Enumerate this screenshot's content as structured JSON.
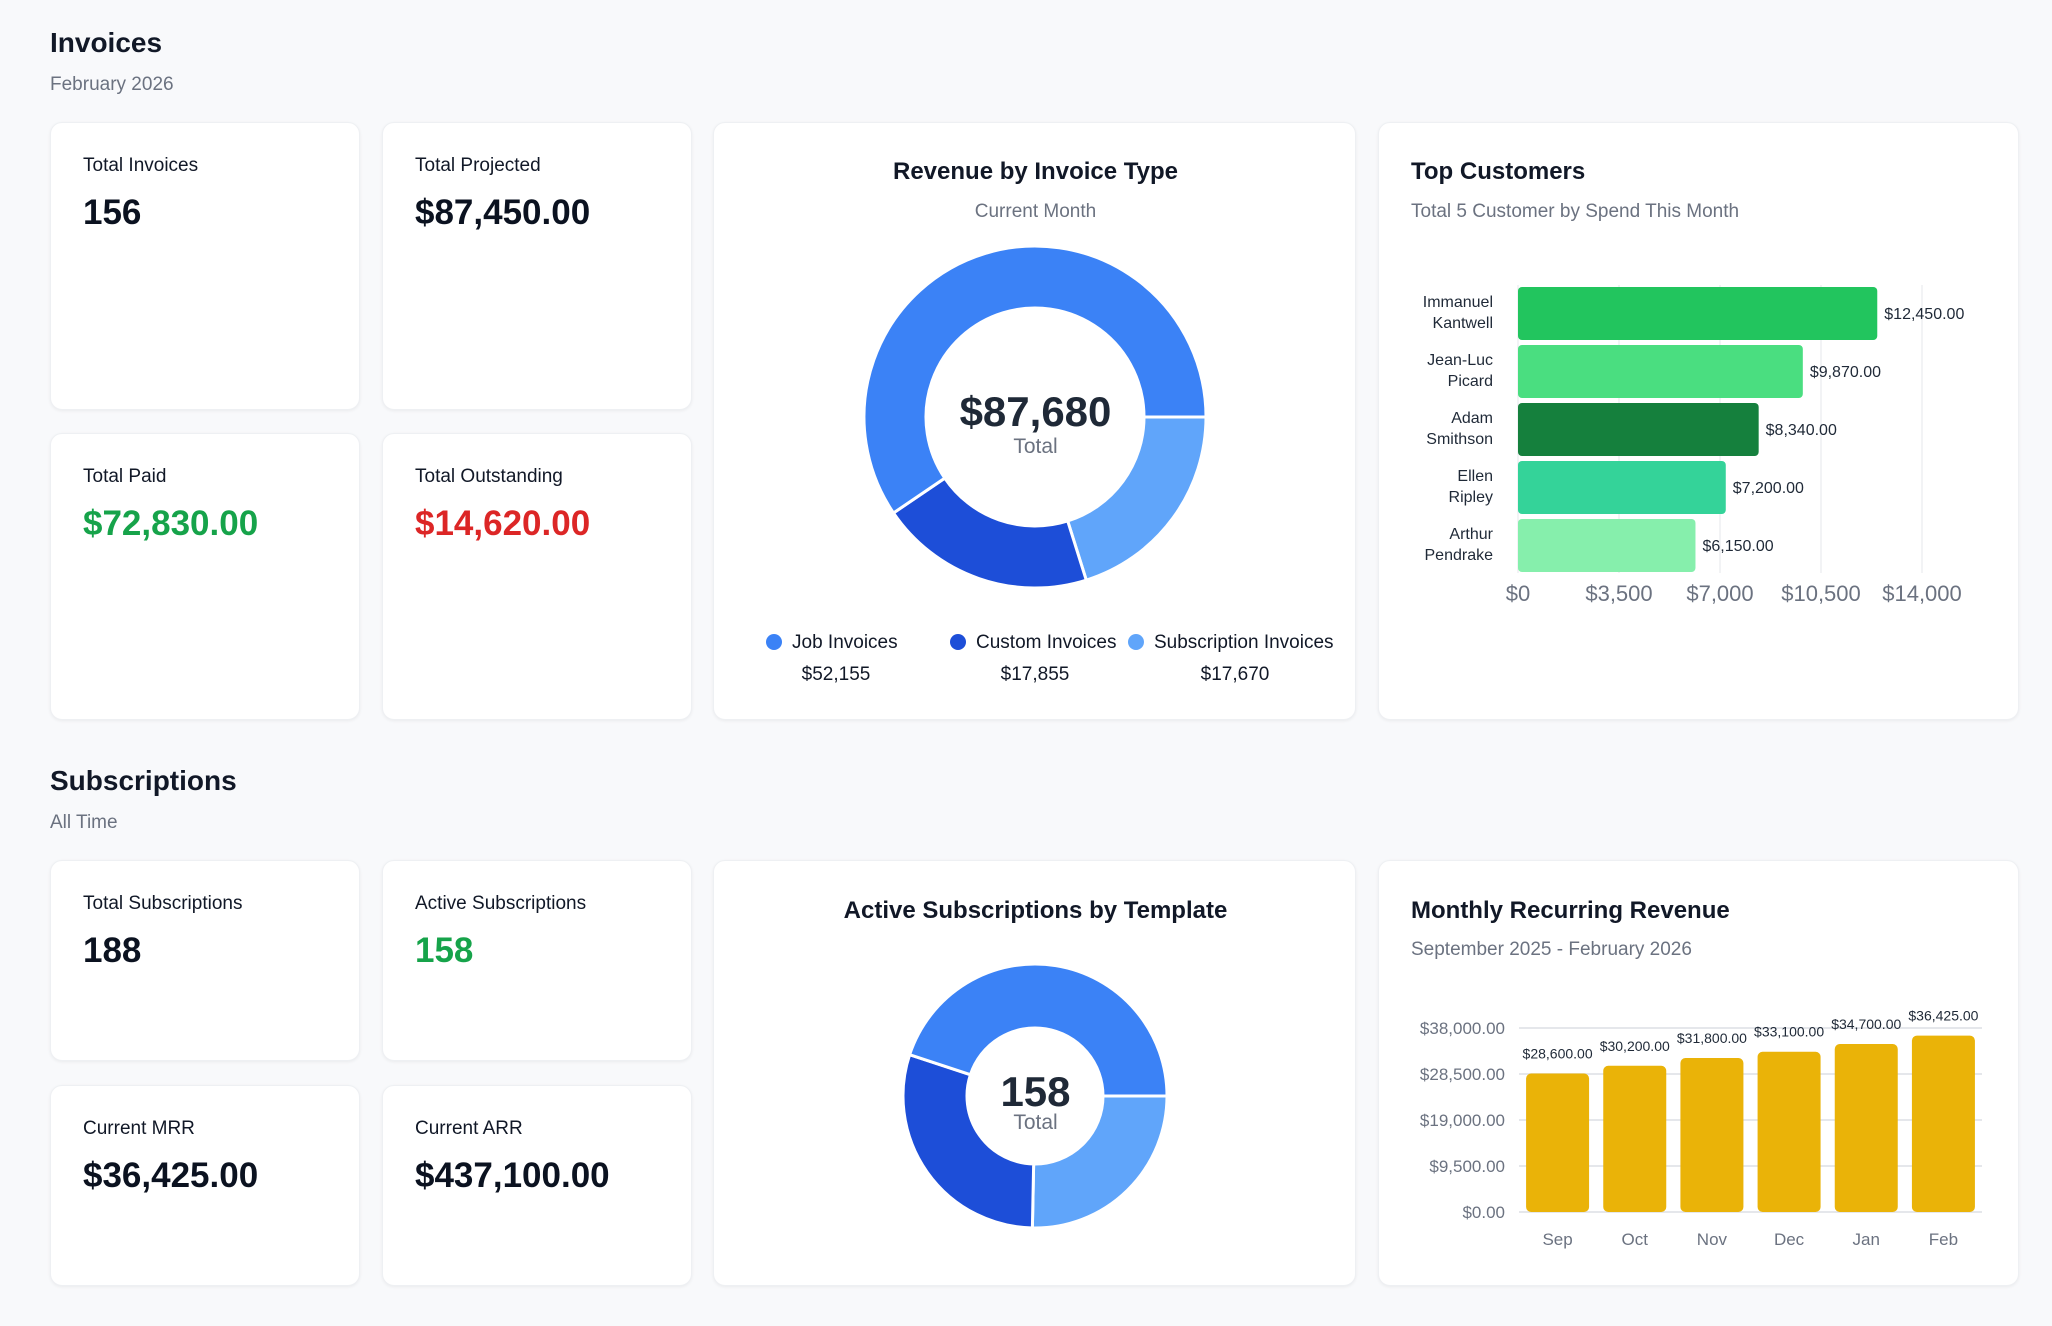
{
  "invoices": {
    "title": "Invoices",
    "subtitle": "February 2026",
    "kpis": [
      {
        "label": "Total Invoices",
        "value": "156"
      },
      {
        "label": "Total Projected",
        "value": "$87,450.00"
      },
      {
        "label": "Total Paid",
        "value": "$72,830.00"
      },
      {
        "label": "Total Outstanding",
        "value": "$14,620.00"
      }
    ]
  },
  "subscriptions": {
    "title": "Subscriptions",
    "subtitle": "All Time",
    "kpis": [
      {
        "label": "Total Subscriptions",
        "value": "188"
      },
      {
        "label": "Active Subscriptions",
        "value": "158"
      },
      {
        "label": "Current MRR",
        "value": "$36,425.00"
      },
      {
        "label": "Current ARR",
        "value": "$437,100.00"
      }
    ]
  },
  "colors": {
    "paid": "#16a34a",
    "outstanding": "#dc2626",
    "active": "#16a34a"
  },
  "chart_data": [
    {
      "type": "pie",
      "title": "Revenue by Invoice Type",
      "subtitle": "Current Month",
      "center_value": "$87,680",
      "center_label": "Total",
      "categories": [
        "Job Invoices",
        "Custom Invoices",
        "Subscription Invoices"
      ],
      "values": [
        52155,
        17855,
        17670
      ],
      "value_labels": [
        "$52,155",
        "$17,855",
        "$17,670"
      ],
      "colors": [
        "#3b82f6",
        "#1d4ed8",
        "#60a5fa"
      ],
      "legend": "bottom"
    },
    {
      "type": "bar",
      "orientation": "horizontal",
      "title": "Top Customers",
      "subtitle": "Total 5 Customer by Spend This Month",
      "categories": [
        [
          "Immanuel",
          "Kantwell"
        ],
        [
          "Jean-Luc",
          "Picard"
        ],
        [
          "Adam",
          "Smithson"
        ],
        [
          "Ellen",
          "Ripley"
        ],
        [
          "Arthur",
          "Pendrake"
        ]
      ],
      "values": [
        12450,
        9870,
        8340,
        7200,
        6150
      ],
      "value_labels": [
        "$12,450.00",
        "$9,870.00",
        "$8,340.00",
        "$7,200.00",
        "$6,150.00"
      ],
      "colors": [
        "#22c55e",
        "#4ade80",
        "#15803d",
        "#34d399",
        "#86efac"
      ],
      "xlim": [
        0,
        14000
      ],
      "xticks": [
        "$0",
        "$3,500",
        "$7,000",
        "$10,500",
        "$14,000"
      ],
      "grid": true
    },
    {
      "type": "pie",
      "title": "Active Subscriptions by Template",
      "center_value": "158",
      "center_label": "Total",
      "values": [
        71,
        40,
        47
      ],
      "colors": [
        "#3b82f6",
        "#60a5fa",
        "#1d4ed8"
      ]
    },
    {
      "type": "bar",
      "title": "Monthly Recurring Revenue",
      "subtitle": "September 2025 - February 2026",
      "categories": [
        "Sep",
        "Oct",
        "Nov",
        "Dec",
        "Jan",
        "Feb"
      ],
      "values": [
        28600,
        30200,
        31800,
        33100,
        34700,
        36425
      ],
      "value_labels": [
        "$28,600.00",
        "$30,200.00",
        "$31,800.00",
        "$33,100.00",
        "$34,700.00",
        "$36,425.00"
      ],
      "color": "#eab308",
      "ylim": [
        0,
        38000
      ],
      "yticks": [
        "$0.00",
        "$9,500.00",
        "$19,000.00",
        "$28,500.00",
        "$38,000.00"
      ],
      "grid": true
    }
  ]
}
